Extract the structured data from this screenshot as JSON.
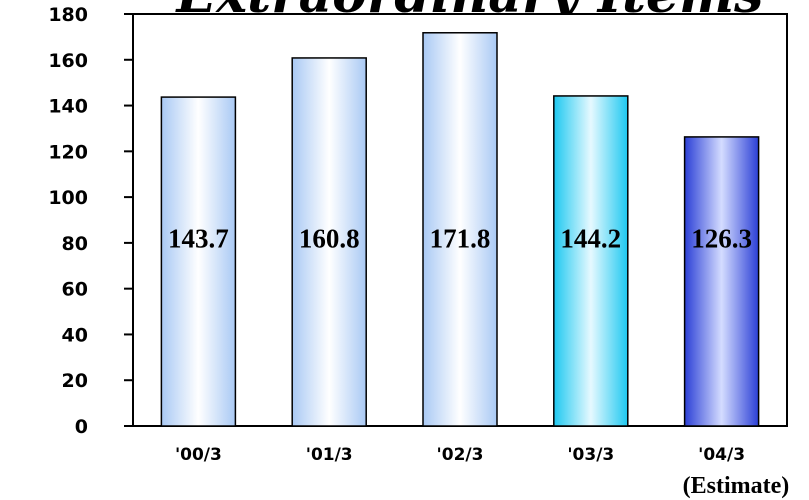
{
  "chart_data": {
    "type": "bar",
    "title": "Extraordinary Items",
    "xlabel": "",
    "ylabel": "",
    "categories": [
      "'00/3",
      "'01/3",
      "'02/3",
      "'03/3",
      "'04/3"
    ],
    "values": [
      143.7,
      160.8,
      171.8,
      144.2,
      126.3
    ],
    "data_labels": [
      "143.7",
      "160.8",
      "171.8",
      "144.2",
      "126.3"
    ],
    "yticks": [
      "0",
      "20",
      "40",
      "60",
      "80",
      "100",
      "120",
      "140",
      "160",
      "180"
    ],
    "ylim": [
      0,
      180
    ],
    "grid": false,
    "legend": "none",
    "annotation": "(Estimate)",
    "bar_gradients": [
      [
        "#a9c9f4",
        "#ffffff",
        "#a9c9f4"
      ],
      [
        "#a9c9f4",
        "#ffffff",
        "#a9c9f4"
      ],
      [
        "#a9c9f4",
        "#ffffff",
        "#a9c9f4"
      ],
      [
        "#1ec8f0",
        "#e6f9ff",
        "#1ec8f0"
      ],
      [
        "#2b3fd6",
        "#d4dcff",
        "#2b3fd6"
      ]
    ]
  }
}
